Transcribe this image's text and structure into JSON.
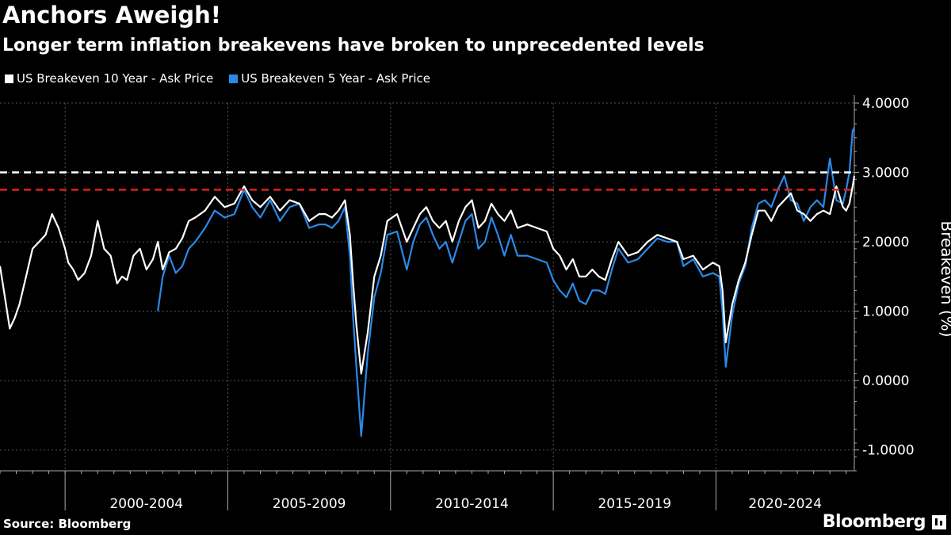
{
  "title": "Anchors Aweigh!",
  "subtitle": "Longer term inflation breakevens have broken to unprecedented levels",
  "footer": {
    "source": "Source: Bloomberg",
    "brand": "Bloomberg"
  },
  "colors": {
    "ten_year": "#ffffff",
    "five_year": "#2a8ae8",
    "ref_white": "#ffffff",
    "ref_red": "#e0201c",
    "grid": "#555555"
  },
  "chart_data": {
    "type": "line",
    "title": "Anchors Aweigh!",
    "ylabel": "Breakeven (%)",
    "xlabel": "",
    "ylim": [
      -1.3,
      4.0
    ],
    "xlim": [
      1998.0,
      2024.25
    ],
    "yticks": [
      -1.0,
      0.0,
      1.0,
      2.0,
      3.0,
      4.0
    ],
    "ytick_labels": [
      "-1.0000",
      "0.0000",
      "1.0000",
      "2.0000",
      "3.0000",
      "4.0000"
    ],
    "x_categories": [
      "2000-2004",
      "2005-2009",
      "2010-2014",
      "2015-2019",
      "2020-2024"
    ],
    "grid": true,
    "legend_position": "top-left",
    "reference_lines": [
      {
        "y": 3.0,
        "color": "white",
        "style": "dashed"
      },
      {
        "y": 2.75,
        "color": "red",
        "style": "dashed"
      }
    ],
    "series": [
      {
        "name": "US Breakeven 10 Year - Ask Price",
        "color": "#ffffff",
        "x": [
          1998.0,
          1998.15,
          1998.3,
          1998.45,
          1998.6,
          1998.8,
          1999.0,
          1999.2,
          1999.4,
          1999.6,
          1999.8,
          2000.0,
          2000.1,
          2000.25,
          2000.4,
          2000.6,
          2000.8,
          2001.0,
          2001.2,
          2001.4,
          2001.6,
          2001.75,
          2001.9,
          2002.1,
          2002.3,
          2002.5,
          2002.7,
          2002.85,
          2003.0,
          2003.2,
          2003.4,
          2003.6,
          2003.8,
          2004.0,
          2004.3,
          2004.6,
          2004.9,
          2005.2,
          2005.5,
          2005.75,
          2006.0,
          2006.3,
          2006.6,
          2006.9,
          2007.2,
          2007.5,
          2007.8,
          2008.0,
          2008.2,
          2008.4,
          2008.6,
          2008.75,
          2008.85,
          2008.95,
          2009.1,
          2009.3,
          2009.5,
          2009.7,
          2009.9,
          2010.2,
          2010.5,
          2010.7,
          2010.9,
          2011.1,
          2011.3,
          2011.5,
          2011.7,
          2011.9,
          2012.1,
          2012.3,
          2012.5,
          2012.7,
          2012.9,
          2013.1,
          2013.3,
          2013.5,
          2013.7,
          2013.9,
          2014.2,
          2014.5,
          2014.8,
          2015.0,
          2015.2,
          2015.4,
          2015.6,
          2015.8,
          2016.0,
          2016.2,
          2016.4,
          2016.6,
          2016.8,
          2017.0,
          2017.3,
          2017.6,
          2017.9,
          2018.2,
          2018.5,
          2018.8,
          2019.0,
          2019.3,
          2019.6,
          2019.9,
          2020.1,
          2020.2,
          2020.3,
          2020.5,
          2020.7,
          2020.9,
          2021.1,
          2021.3,
          2021.5,
          2021.7,
          2021.9,
          2022.1,
          2022.3,
          2022.5,
          2022.7,
          2022.9,
          2023.1,
          2023.3,
          2023.5,
          2023.7,
          2023.9,
          2024.0,
          2024.1,
          2024.2,
          2024.25
        ],
        "y": [
          1.65,
          1.2,
          0.75,
          0.9,
          1.1,
          1.5,
          1.9,
          2.0,
          2.1,
          2.4,
          2.2,
          1.9,
          1.7,
          1.6,
          1.45,
          1.55,
          1.8,
          2.3,
          1.9,
          1.8,
          1.4,
          1.5,
          1.45,
          1.8,
          1.9,
          1.6,
          1.75,
          2.0,
          1.6,
          1.85,
          1.9,
          2.05,
          2.3,
          2.35,
          2.45,
          2.65,
          2.5,
          2.55,
          2.8,
          2.6,
          2.5,
          2.65,
          2.45,
          2.6,
          2.55,
          2.3,
          2.4,
          2.4,
          2.35,
          2.45,
          2.6,
          2.1,
          1.4,
          0.8,
          0.1,
          0.7,
          1.5,
          1.8,
          2.3,
          2.4,
          2.0,
          2.2,
          2.4,
          2.5,
          2.3,
          2.2,
          2.3,
          2.0,
          2.3,
          2.5,
          2.6,
          2.2,
          2.3,
          2.55,
          2.4,
          2.3,
          2.45,
          2.2,
          2.25,
          2.2,
          2.15,
          1.9,
          1.8,
          1.6,
          1.75,
          1.5,
          1.5,
          1.6,
          1.5,
          1.45,
          1.75,
          2.0,
          1.8,
          1.85,
          2.0,
          2.1,
          2.05,
          2.0,
          1.75,
          1.8,
          1.6,
          1.7,
          1.65,
          1.3,
          0.55,
          1.1,
          1.45,
          1.7,
          2.1,
          2.45,
          2.45,
          2.3,
          2.5,
          2.6,
          2.7,
          2.45,
          2.4,
          2.3,
          2.4,
          2.45,
          2.4,
          2.8,
          2.5,
          2.45,
          2.55,
          2.8,
          2.95
        ]
      },
      {
        "name": "US Breakeven 5 Year - Ask Price",
        "color": "#2a8ae8",
        "x": [
          2002.85,
          2003.0,
          2003.2,
          2003.4,
          2003.6,
          2003.8,
          2004.0,
          2004.3,
          2004.6,
          2004.9,
          2005.2,
          2005.5,
          2005.75,
          2006.0,
          2006.3,
          2006.6,
          2006.9,
          2007.2,
          2007.5,
          2007.8,
          2008.0,
          2008.2,
          2008.4,
          2008.6,
          2008.75,
          2008.85,
          2008.95,
          2009.1,
          2009.3,
          2009.5,
          2009.7,
          2009.9,
          2010.2,
          2010.5,
          2010.7,
          2010.9,
          2011.1,
          2011.3,
          2011.5,
          2011.7,
          2011.9,
          2012.1,
          2012.3,
          2012.5,
          2012.7,
          2012.9,
          2013.1,
          2013.3,
          2013.5,
          2013.7,
          2013.9,
          2014.2,
          2014.5,
          2014.8,
          2015.0,
          2015.2,
          2015.4,
          2015.6,
          2015.8,
          2016.0,
          2016.2,
          2016.4,
          2016.6,
          2016.8,
          2017.0,
          2017.3,
          2017.6,
          2017.9,
          2018.2,
          2018.5,
          2018.8,
          2019.0,
          2019.3,
          2019.6,
          2019.9,
          2020.1,
          2020.2,
          2020.3,
          2020.5,
          2020.7,
          2020.9,
          2021.1,
          2021.3,
          2021.5,
          2021.7,
          2021.9,
          2022.1,
          2022.3,
          2022.5,
          2022.7,
          2022.9,
          2023.1,
          2023.3,
          2023.5,
          2023.7,
          2023.9,
          2024.0,
          2024.1,
          2024.2,
          2024.25
        ],
        "y": [
          1.0,
          1.5,
          1.8,
          1.55,
          1.65,
          1.9,
          2.0,
          2.2,
          2.45,
          2.35,
          2.4,
          2.75,
          2.5,
          2.35,
          2.6,
          2.3,
          2.5,
          2.55,
          2.2,
          2.25,
          2.25,
          2.2,
          2.3,
          2.5,
          1.8,
          0.9,
          0.2,
          -0.8,
          0.4,
          1.2,
          1.55,
          2.1,
          2.15,
          1.6,
          2.0,
          2.25,
          2.35,
          2.1,
          1.9,
          2.0,
          1.7,
          2.0,
          2.3,
          2.4,
          1.9,
          2.0,
          2.35,
          2.1,
          1.8,
          2.1,
          1.8,
          1.8,
          1.75,
          1.7,
          1.45,
          1.3,
          1.2,
          1.4,
          1.15,
          1.1,
          1.3,
          1.3,
          1.25,
          1.6,
          1.9,
          1.7,
          1.75,
          1.9,
          2.05,
          2.0,
          2.0,
          1.65,
          1.75,
          1.5,
          1.55,
          1.5,
          1.0,
          0.2,
          0.95,
          1.4,
          1.65,
          2.2,
          2.55,
          2.6,
          2.5,
          2.75,
          2.95,
          2.6,
          2.55,
          2.3,
          2.5,
          2.6,
          2.5,
          3.2,
          2.6,
          2.55,
          2.75,
          3.0,
          3.6,
          3.65
        ]
      }
    ]
  }
}
